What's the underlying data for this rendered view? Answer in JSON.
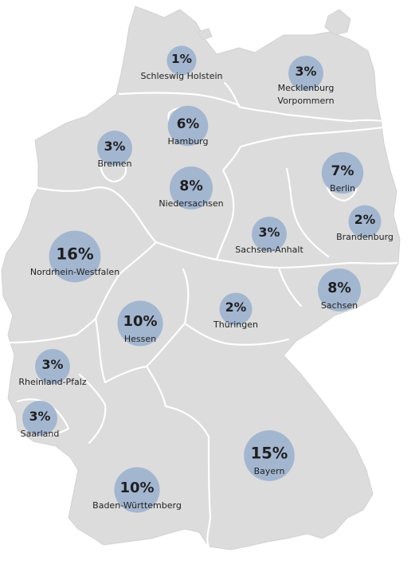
{
  "map": {
    "colors": {
      "land": "#dcdcdc",
      "border": "#ffffff",
      "bubble": "#9fb3cf",
      "text": "#222222"
    },
    "states": [
      {
        "id": "sh",
        "label": "Schleswig Holstein",
        "value": "1%",
        "pct": 1
      },
      {
        "id": "mv",
        "label": "Mecklenburg Vorpommern",
        "label_lines": [
          "Mecklenburg",
          "Vorpommern"
        ],
        "value": "3%",
        "pct": 3
      },
      {
        "id": "hh",
        "label": "Hamburg",
        "value": "6%",
        "pct": 6
      },
      {
        "id": "hb",
        "label": "Bremen",
        "value": "3%",
        "pct": 3
      },
      {
        "id": "ni",
        "label": "Niedersachsen",
        "value": "8%",
        "pct": 8
      },
      {
        "id": "be",
        "label": "Berlin",
        "value": "7%",
        "pct": 7
      },
      {
        "id": "bb",
        "label": "Brandenburg",
        "value": "2%",
        "pct": 2
      },
      {
        "id": "st",
        "label": "Sachsen-Anhalt",
        "value": "3%",
        "pct": 3
      },
      {
        "id": "nw",
        "label": "Nordrhein-Westfalen",
        "value": "16%",
        "pct": 16
      },
      {
        "id": "sn",
        "label": "Sachsen",
        "value": "8%",
        "pct": 8
      },
      {
        "id": "he",
        "label": "Hessen",
        "value": "10%",
        "pct": 10
      },
      {
        "id": "th",
        "label": "Thüringen",
        "value": "2%",
        "pct": 2
      },
      {
        "id": "rp",
        "label": "Rheinland-Pfalz",
        "value": "3%",
        "pct": 3
      },
      {
        "id": "sl",
        "label": "Saarland",
        "value": "3%",
        "pct": 3
      },
      {
        "id": "by",
        "label": "Bayern",
        "value": "15%",
        "pct": 15
      },
      {
        "id": "bw",
        "label": "Baden-Württemberg",
        "value": "10%",
        "pct": 10
      }
    ]
  }
}
